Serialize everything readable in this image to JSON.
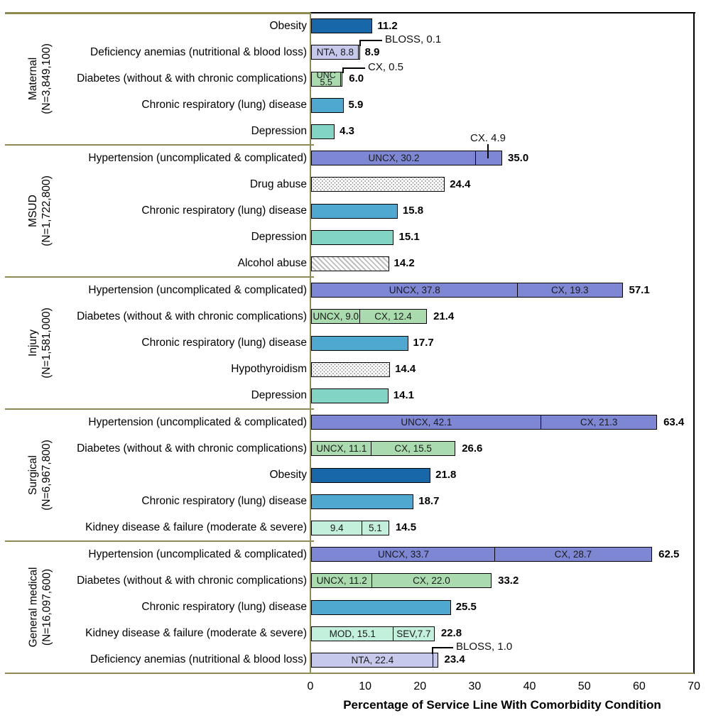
{
  "chart_data": {
    "type": "bar",
    "orientation": "horizontal",
    "title": "",
    "xlabel": "Percentage of Service Line With Comorbidity Condition",
    "xlim": [
      0,
      70
    ],
    "xticks": [
      "0",
      "10",
      "20",
      "30",
      "40",
      "50",
      "60",
      "70"
    ],
    "grid": false,
    "legend": "none",
    "palette": {
      "obesity": "#1767A9",
      "anemia": "#C6C9EC",
      "diabetes": "#AADBAF",
      "respiratory": "#4FA8CF",
      "depression": "#82D5C5",
      "hypertension": "#7E87D3",
      "kidney": "#C2F0DC",
      "pattern_dots": "#969696",
      "pattern_hatch": "#BDBDBD",
      "bar_border": "#000000",
      "frame_olive": "#8E8A51",
      "frame_black": "#000000"
    },
    "groups": [
      {
        "name": "Maternal",
        "n_label": "(N=3,849,100)",
        "rows": [
          {
            "label": "Obesity",
            "total": 11.2,
            "total_label": "11.2",
            "style": "obesity",
            "segments": [
              {
                "v": 11.2
              }
            ]
          },
          {
            "label": "Deficiency anemias (nutritional & blood loss)",
            "total": 8.9,
            "total_label": "8.9",
            "style": "anemia",
            "segments": [
              {
                "v": 8.8,
                "lbl": "NTA,  8.8"
              },
              {
                "v": 0.1
              }
            ],
            "callout": {
              "text": "BLOSS, 0.1"
            }
          },
          {
            "label": "Diabetes (without & with chronic complications)",
            "total": 6.0,
            "total_label": "6.0",
            "style": "diabetes",
            "segments": [
              {
                "v": 5.5,
                "lines": [
                  "UNC",
                  "5.5"
                ]
              },
              {
                "v": 0.5
              }
            ],
            "callout": {
              "text": "CX, 0.5"
            }
          },
          {
            "label": "Chronic respiratory (lung) disease",
            "total": 5.9,
            "total_label": "5.9",
            "style": "respiratory",
            "segments": [
              {
                "v": 5.9
              }
            ]
          },
          {
            "label": "Depression",
            "total": 4.3,
            "total_label": "4.3",
            "style": "depression",
            "segments": [
              {
                "v": 4.3
              }
            ]
          }
        ]
      },
      {
        "name": "MSUD",
        "n_label": "(N=1,722,800)",
        "rows": [
          {
            "label": "Hypertension (uncomplicated & complicated)",
            "total": 35.0,
            "total_label": "35.0",
            "style": "hypertension",
            "segments": [
              {
                "v": 30.2,
                "lbl": "UNCX,  30.2"
              },
              {
                "v": 4.9
              }
            ],
            "callout": {
              "text": "CX. 4.9"
            }
          },
          {
            "label": "Drug abuse",
            "total": 24.4,
            "total_label": "24.4",
            "style": "dots",
            "segments": [
              {
                "v": 24.4
              }
            ]
          },
          {
            "label": "Chronic respiratory (lung) disease",
            "total": 15.8,
            "total_label": "15.8",
            "style": "respiratory",
            "segments": [
              {
                "v": 15.8
              }
            ]
          },
          {
            "label": "Depression",
            "total": 15.1,
            "total_label": "15.1",
            "style": "depression",
            "segments": [
              {
                "v": 15.1
              }
            ]
          },
          {
            "label": "Alcohol abuse",
            "total": 14.2,
            "total_label": "14.2",
            "style": "hatch",
            "segments": [
              {
                "v": 14.2
              }
            ]
          }
        ]
      },
      {
        "name": "Injury",
        "n_label": "(N=1,581,000)",
        "rows": [
          {
            "label": "Hypertension (uncomplicated & complicated)",
            "total": 57.1,
            "total_label": "57.1",
            "style": "hypertension",
            "segments": [
              {
                "v": 37.8,
                "lbl": "UNCX, 37.8"
              },
              {
                "v": 19.3,
                "lbl": "CX, 19.3"
              }
            ]
          },
          {
            "label": "Diabetes (without & with chronic complications)",
            "total": 21.4,
            "total_label": "21.4",
            "style": "diabetes",
            "segments": [
              {
                "v": 9.0,
                "lbl": "UNCX, 9.0"
              },
              {
                "v": 12.4,
                "lbl": "CX, 12.4"
              }
            ]
          },
          {
            "label": "Chronic respiratory (lung) disease",
            "total": 17.7,
            "total_label": "17.7",
            "style": "respiratory",
            "segments": [
              {
                "v": 17.7
              }
            ]
          },
          {
            "label": "Hypothyroidism",
            "total": 14.4,
            "total_label": "14.4",
            "style": "dots",
            "segments": [
              {
                "v": 14.4
              }
            ]
          },
          {
            "label": "Depression",
            "total": 14.1,
            "total_label": "14.1",
            "style": "depression",
            "segments": [
              {
                "v": 14.1
              }
            ]
          }
        ]
      },
      {
        "name": "Surgical",
        "n_label": "(N=6,967,800)",
        "rows": [
          {
            "label": "Hypertension (uncomplicated & complicated)",
            "total": 63.4,
            "total_label": "63.4",
            "style": "hypertension",
            "segments": [
              {
                "v": 42.1,
                "lbl": "UNCX, 42.1"
              },
              {
                "v": 21.3,
                "lbl": "CX, 21.3"
              }
            ]
          },
          {
            "label": "Diabetes (without & with chronic complications)",
            "total": 26.6,
            "total_label": "26.6",
            "style": "diabetes",
            "segments": [
              {
                "v": 11.1,
                "lbl": "UNCX, 11.1"
              },
              {
                "v": 15.5,
                "lbl": "CX, 15.5"
              }
            ]
          },
          {
            "label": "Obesity",
            "total": 21.8,
            "total_label": "21.8",
            "style": "obesity",
            "segments": [
              {
                "v": 21.8
              }
            ]
          },
          {
            "label": "Chronic respiratory (lung) disease",
            "total": 18.7,
            "total_label": "18.7",
            "style": "respiratory",
            "segments": [
              {
                "v": 18.7
              }
            ]
          },
          {
            "label": "Kidney disease & failure (moderate & severe)",
            "total": 14.5,
            "total_label": "14.5",
            "style": "kidney",
            "segments": [
              {
                "v": 9.4,
                "lbl": "9.4"
              },
              {
                "v": 5.1,
                "lbl": "5.1"
              }
            ]
          }
        ]
      },
      {
        "name": "General medical",
        "n_label": "(N=16,097,600)",
        "rows": [
          {
            "label": "Hypertension (uncomplicated & complicated)",
            "total": 62.5,
            "total_label": "62.5",
            "style": "hypertension",
            "segments": [
              {
                "v": 33.7,
                "lbl": "UNCX, 33.7"
              },
              {
                "v": 28.7,
                "lbl": "CX, 28.7"
              }
            ]
          },
          {
            "label": "Diabetes (without & with chronic complications)",
            "total": 33.2,
            "total_label": "33.2",
            "style": "diabetes",
            "segments": [
              {
                "v": 11.2,
                "lbl": "UNCX, 11.2"
              },
              {
                "v": 22.0,
                "lbl": "CX, 22.0"
              }
            ]
          },
          {
            "label": "Chronic respiratory (lung) disease",
            "total": 25.5,
            "total_label": "25.5",
            "style": "respiratory",
            "segments": [
              {
                "v": 25.5
              }
            ]
          },
          {
            "label": "Kidney disease & failure (moderate & severe)",
            "total": 22.8,
            "total_label": "22.8",
            "style": "kidney",
            "segments": [
              {
                "v": 15.1,
                "lbl": "MOD, 15.1"
              },
              {
                "v": 7.7,
                "lbl": "SEV,7.7"
              }
            ]
          },
          {
            "label": "Deficiency anemias (nutritional & blood loss)",
            "total": 23.4,
            "total_label": "23.4",
            "style": "anemia",
            "segments": [
              {
                "v": 22.4,
                "lbl": "NTA,  22.4"
              },
              {
                "v": 1.0
              }
            ],
            "callout": {
              "text": "BLOSS, 1.0"
            }
          }
        ]
      }
    ]
  }
}
